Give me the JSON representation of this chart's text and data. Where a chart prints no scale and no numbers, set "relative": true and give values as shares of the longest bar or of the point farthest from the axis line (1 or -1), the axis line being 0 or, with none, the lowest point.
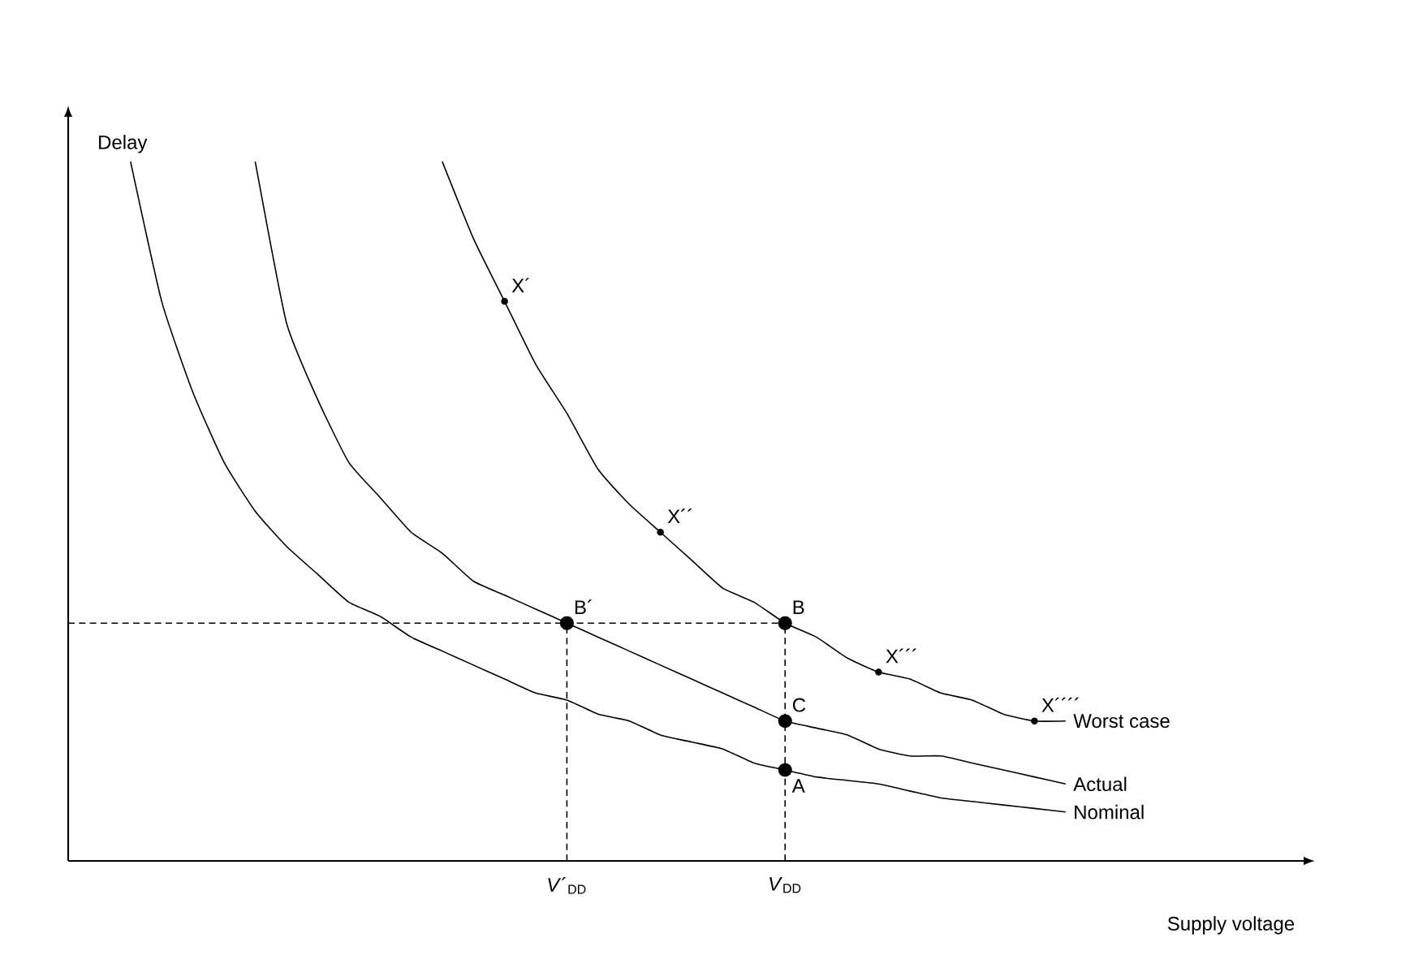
{
  "chart_data": {
    "type": "line",
    "relative": true,
    "xlabel": "Supply voltage",
    "ylabel": "Delay",
    "categories": [
      null,
      null,
      null,
      null,
      null,
      null,
      null,
      null,
      null,
      null,
      null,
      null,
      null,
      null,
      null,
      null,
      "*V*´$_{DD}$",
      null,
      null,
      null,
      null,
      null,
      null,
      "*V*$_{DD}$",
      null,
      null,
      null,
      null,
      null,
      null,
      null,
      null,
      null,
      null,
      null,
      null,
      null,
      null,
      null,
      null,
      null
    ],
    "marker": "none",
    "line_style": "solid",
    "series": [
      {
        "name": "Worst case",
        "color": "#000000",
        "values": [
          null,
          null,
          null,
          null,
          null,
          null,
          null,
          null,
          null,
          null,
          null,
          null,
          1.0,
          0.89,
          0.8,
          0.71,
          0.64,
          0.56,
          0.51,
          0.47,
          0.43,
          0.39,
          0.37,
          0.34,
          0.32,
          0.29,
          0.27,
          0.26,
          0.24,
          0.23,
          0.21,
          0.2,
          0.2,
          null,
          null,
          null,
          null,
          null,
          null,
          null,
          null
        ]
      },
      {
        "name": "Actual",
        "color": "#000000",
        "values": [
          null,
          null,
          null,
          null,
          null,
          null,
          1.0,
          0.77,
          0.66,
          0.57,
          0.52,
          0.47,
          0.44,
          0.4,
          0.38,
          0.36,
          0.34,
          0.32,
          0.3,
          0.28,
          0.26,
          0.24,
          0.22,
          0.2,
          0.19,
          0.18,
          0.16,
          0.15,
          0.15,
          0.14,
          0.13,
          0.12,
          0.11,
          null,
          null,
          null,
          null,
          null,
          null,
          null,
          null
        ]
      },
      {
        "name": "Nominal",
        "color": "#000000",
        "values": [
          null,
          null,
          1.0,
          0.8,
          0.67,
          0.57,
          0.5,
          0.45,
          0.41,
          0.37,
          0.35,
          0.32,
          0.3,
          0.28,
          0.26,
          0.24,
          0.23,
          0.21,
          0.2,
          0.18,
          0.17,
          0.16,
          0.14,
          0.13,
          0.12,
          0.115,
          0.11,
          0.1,
          0.09,
          0.085,
          0.08,
          0.075,
          0.07,
          null,
          null,
          null,
          null,
          null,
          null,
          null,
          null
        ]
      },
      {
        "type": "line",
        "line_style": "dashed",
        "color": "#000000",
        "values": [
          0.34,
          0.34,
          0.34,
          0.34,
          0.34,
          0.34,
          0.34,
          0.34,
          0.34,
          0.34,
          0.34,
          0.34,
          0.34,
          0.34,
          0.34,
          0.34,
          0.34,
          0.34,
          0.34,
          0.34,
          0.34,
          0.34,
          0.34,
          0.34,
          null,
          null,
          null,
          null,
          null,
          null,
          null,
          null,
          null,
          null,
          null,
          null,
          null,
          null,
          null,
          null,
          null
        ]
      },
      {
        "name": "B´",
        "type": "lollipop",
        "line_style": "dashed",
        "marker": "circle",
        "color": "#000000",
        "values": [
          null,
          null,
          null,
          null,
          null,
          null,
          null,
          null,
          null,
          null,
          null,
          null,
          null,
          null,
          null,
          null,
          0.34,
          null,
          null,
          null,
          null,
          null,
          null,
          null,
          null,
          null,
          null,
          null,
          null,
          null,
          null,
          null,
          null,
          null,
          null,
          null,
          null,
          null,
          null,
          null,
          null
        ]
      },
      {
        "name": "B",
        "type": "lollipop",
        "line_style": "dashed",
        "marker": "circle",
        "color": "#000000",
        "values": [
          null,
          null,
          null,
          null,
          null,
          null,
          null,
          null,
          null,
          null,
          null,
          null,
          null,
          null,
          null,
          null,
          null,
          null,
          null,
          null,
          null,
          null,
          null,
          0.34,
          null,
          null,
          null,
          null,
          null,
          null,
          null,
          null,
          null,
          null,
          null,
          null,
          null,
          null,
          null,
          null,
          null
        ]
      },
      {
        "name": "C",
        "type": "scatter",
        "marker": "circle",
        "color": "#000000",
        "values": [
          null,
          null,
          null,
          null,
          null,
          null,
          null,
          null,
          null,
          null,
          null,
          null,
          null,
          null,
          null,
          null,
          null,
          null,
          null,
          null,
          null,
          null,
          null,
          0.2,
          null,
          null,
          null,
          null,
          null,
          null,
          null,
          null,
          null,
          null,
          null,
          null,
          null,
          null,
          null,
          null,
          null
        ]
      },
      {
        "name": "A",
        "type": "scatter",
        "marker": "circle",
        "color": "#000000",
        "values": [
          null,
          null,
          null,
          null,
          null,
          null,
          null,
          null,
          null,
          null,
          null,
          null,
          null,
          null,
          null,
          null,
          null,
          null,
          null,
          null,
          null,
          null,
          null,
          0.13,
          null,
          null,
          null,
          null,
          null,
          null,
          null,
          null,
          null,
          null,
          null,
          null,
          null,
          null,
          null,
          null,
          null
        ]
      },
      {
        "name": "X´",
        "type": "scatter",
        "marker": "circle",
        "color": "#000000",
        "values": [
          null,
          null,
          null,
          null,
          null,
          null,
          null,
          null,
          null,
          null,
          null,
          null,
          null,
          null,
          0.8,
          null,
          null,
          null,
          null,
          null,
          null,
          null,
          null,
          null,
          null,
          null,
          null,
          null,
          null,
          null,
          null,
          null,
          null,
          null,
          null,
          null,
          null,
          null,
          null,
          null,
          null
        ]
      },
      {
        "name": "X´´",
        "type": "scatter",
        "marker": "circle",
        "color": "#000000",
        "values": [
          null,
          null,
          null,
          null,
          null,
          null,
          null,
          null,
          null,
          null,
          null,
          null,
          null,
          null,
          null,
          null,
          null,
          null,
          null,
          0.47,
          null,
          null,
          null,
          null,
          null,
          null,
          null,
          null,
          null,
          null,
          null,
          null,
          null,
          null,
          null,
          null,
          null,
          null,
          null,
          null,
          null
        ]
      },
      {
        "name": "X´´´",
        "type": "scatter",
        "marker": "circle",
        "color": "#000000",
        "values": [
          null,
          null,
          null,
          null,
          null,
          null,
          null,
          null,
          null,
          null,
          null,
          null,
          null,
          null,
          null,
          null,
          null,
          null,
          null,
          null,
          null,
          null,
          null,
          null,
          null,
          null,
          0.27,
          null,
          null,
          null,
          null,
          null,
          null,
          null,
          null,
          null,
          null,
          null,
          null,
          null,
          null
        ]
      },
      {
        "name": "X´´´´",
        "type": "scatter",
        "marker": "circle",
        "color": "#000000",
        "values": [
          null,
          null,
          null,
          null,
          null,
          null,
          null,
          null,
          null,
          null,
          null,
          null,
          null,
          null,
          null,
          null,
          null,
          null,
          null,
          null,
          null,
          null,
          null,
          null,
          null,
          null,
          null,
          null,
          null,
          null,
          null,
          0.2,
          null,
          null,
          null,
          null,
          null,
          null,
          null,
          null,
          null
        ]
      }
    ]
  }
}
